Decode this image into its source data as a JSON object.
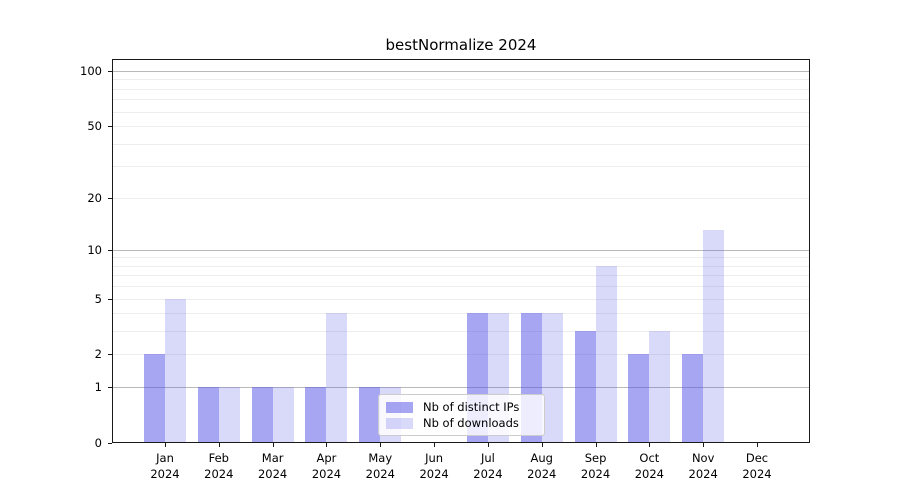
{
  "chart_data": {
    "type": "bar",
    "title": "bestNormalize 2024",
    "categories": [
      {
        "month": "Jan",
        "year": "2024"
      },
      {
        "month": "Feb",
        "year": "2024"
      },
      {
        "month": "Mar",
        "year": "2024"
      },
      {
        "month": "Apr",
        "year": "2024"
      },
      {
        "month": "May",
        "year": "2024"
      },
      {
        "month": "Jun",
        "year": "2024"
      },
      {
        "month": "Jul",
        "year": "2024"
      },
      {
        "month": "Aug",
        "year": "2024"
      },
      {
        "month": "Sep",
        "year": "2024"
      },
      {
        "month": "Oct",
        "year": "2024"
      },
      {
        "month": "Nov",
        "year": "2024"
      },
      {
        "month": "Dec",
        "year": "2024"
      }
    ],
    "series": [
      {
        "name": "Nb of distinct IPs",
        "color": "rgba(84,84,230,0.52)",
        "values": [
          2,
          1,
          1,
          1,
          1,
          0,
          4,
          4,
          3,
          2,
          2,
          0
        ]
      },
      {
        "name": "Nb of downloads",
        "color": "rgba(84,84,230,0.22)",
        "values": [
          5,
          1,
          1,
          4,
          1,
          0,
          4,
          4,
          8,
          3,
          13,
          0
        ]
      }
    ],
    "y_axis": {
      "scale": "log1p",
      "ticks": [
        0,
        1,
        2,
        5,
        10,
        20,
        50,
        100
      ],
      "max": 116
    },
    "grid": {
      "major": [
        1,
        10,
        100
      ],
      "minor": [
        2,
        3,
        4,
        5,
        6,
        7,
        8,
        9,
        20,
        30,
        40,
        50,
        60,
        70,
        80,
        90
      ],
      "major_color": "#b9b9b9",
      "minor_color": "#ededed"
    },
    "legend_position": "lower center"
  },
  "colors": {
    "background": "#ffffff",
    "spine": "#1a1a1a",
    "text": "#000000",
    "bar_dark_composited": "#a9a9f2",
    "bar_light_composited": "#dcdcf8"
  }
}
